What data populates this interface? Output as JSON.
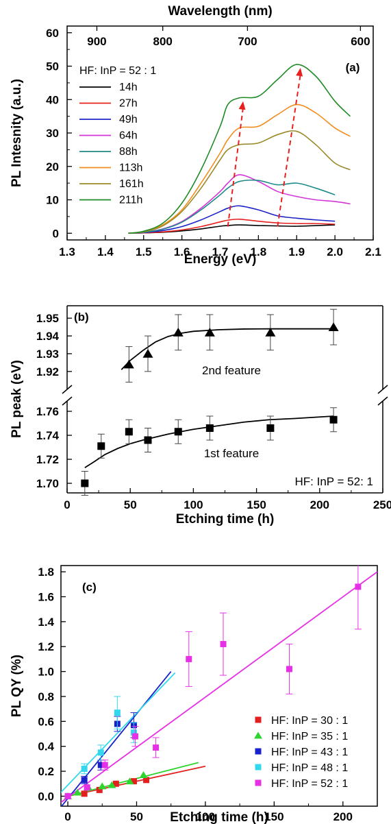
{
  "chart_data": [
    {
      "type": "line",
      "panel_label": "(a)",
      "top_xlabel": "Wavelength (nm)",
      "xlabel": "Energy (eV)",
      "ylabel": "PL Intesnity (a.u.)",
      "xlim": [
        1.3,
        2.1
      ],
      "ylim": [
        -2,
        62
      ],
      "xticks": [
        "1.3",
        "1.4",
        "1.5",
        "1.6",
        "1.7",
        "1.8",
        "1.9",
        "2.0",
        "2.1"
      ],
      "yticks": [
        "0",
        "10",
        "20",
        "30",
        "40",
        "50",
        "60"
      ],
      "top_ticks": [
        {
          "label": "900",
          "nm": 900
        },
        {
          "label": "800",
          "nm": 800
        },
        {
          "label": "700",
          "nm": 700
        },
        {
          "label": "600",
          "nm": 600
        }
      ],
      "legend_title": "HF: InP = 52 : 1",
      "x": [
        1.46,
        1.5,
        1.55,
        1.6,
        1.65,
        1.7,
        1.72,
        1.75,
        1.8,
        1.85,
        1.9,
        1.95,
        2.0,
        2.04
      ],
      "series": [
        {
          "name": "14h",
          "color": "#000000",
          "values": [
            0,
            0.1,
            0.3,
            0.7,
            1.3,
            2.1,
            2.3,
            2.5,
            2.3,
            2.2,
            2.1,
            2.3,
            2.5,
            null
          ]
        },
        {
          "name": "27h",
          "color": "#e8201d",
          "values": [
            0,
            0.1,
            0.4,
            1.0,
            2.0,
            3.4,
            3.9,
            4.2,
            3.6,
            3.1,
            2.9,
            2.9,
            2.7,
            null
          ]
        },
        {
          "name": "49h",
          "color": "#1c22c8",
          "values": [
            0,
            0.2,
            0.8,
            2.0,
            4.0,
            6.5,
            7.5,
            8.2,
            7.0,
            5.2,
            4.5,
            4.0,
            3.6,
            null
          ]
        },
        {
          "name": "64h",
          "color": "#d433d9",
          "values": [
            0,
            0.3,
            1.3,
            3.5,
            7.5,
            12.5,
            15.0,
            17.5,
            15.5,
            12.5,
            11.0,
            10.0,
            9.5,
            8.8
          ]
        },
        {
          "name": "88h",
          "color": "#1e8a8a",
          "values": [
            0,
            0.3,
            1.2,
            3.3,
            7.0,
            11.5,
            13.5,
            15.5,
            15.8,
            14.5,
            15.0,
            13.5,
            11.5,
            null
          ]
        },
        {
          "name": "113h",
          "color": "#f28c1e",
          "values": [
            0,
            0.5,
            2.5,
            7.0,
            15.0,
            24.0,
            28.0,
            31.5,
            32.0,
            35.5,
            38.5,
            36.0,
            31.5,
            29.0
          ]
        },
        {
          "name": "161h",
          "color": "#9a8a28",
          "values": [
            0,
            0.4,
            2.2,
            6.5,
            13.5,
            22.0,
            25.0,
            26.5,
            27.0,
            29.5,
            30.5,
            26.5,
            21.0,
            19.0
          ]
        },
        {
          "name": "211h",
          "color": "#1e8a24",
          "values": [
            0,
            0.6,
            3.0,
            9.0,
            19.0,
            32.0,
            38.5,
            40.5,
            41.0,
            46.0,
            50.5,
            47.0,
            39.5,
            35.0
          ]
        }
      ],
      "arrows": [
        {
          "from": [
            1.72,
            2.0
          ],
          "to": [
            1.76,
            39.5
          ]
        },
        {
          "from": [
            1.85,
            2.0
          ],
          "to": [
            1.91,
            49.5
          ]
        }
      ]
    },
    {
      "type": "scatter",
      "panel_label": "(b)",
      "xlabel": "Etching time (h)",
      "ylabel": "PL  peak (eV)",
      "xlim": [
        0,
        250
      ],
      "xticks": [
        "0",
        "50",
        "100",
        "150",
        "200",
        "250"
      ],
      "upper_yticks": [
        "1.92",
        "1.93",
        "1.94",
        "1.95"
      ],
      "lower_yticks": [
        "1.70",
        "1.72",
        "1.74",
        "1.76"
      ],
      "upper_ylim": [
        1.913,
        1.957
      ],
      "lower_ylim": [
        1.692,
        1.764
      ],
      "series": [
        {
          "name": "2nd feature",
          "marker": "triangle",
          "x": [
            49,
            64,
            88,
            113,
            161,
            211
          ],
          "y": [
            1.924,
            1.93,
            1.942,
            1.942,
            1.942,
            1.945
          ],
          "err": [
            0.01,
            0.01,
            0.01,
            0.01,
            0.01,
            0.01
          ],
          "fit_x": [
            43,
            50,
            60,
            70,
            80,
            90,
            100,
            120,
            140,
            160,
            180,
            211
          ],
          "fit_y": [
            1.921,
            1.9262,
            1.9318,
            1.9366,
            1.9397,
            1.9415,
            1.9426,
            1.9435,
            1.9439,
            1.944,
            1.944,
            1.944
          ]
        },
        {
          "name": "1st feature",
          "marker": "square",
          "x": [
            14,
            27,
            49,
            64,
            88,
            113,
            161,
            211
          ],
          "y": [
            1.7,
            1.731,
            1.743,
            1.736,
            1.743,
            1.746,
            1.746,
            1.753
          ],
          "err": [
            0.01,
            0.01,
            0.01,
            0.01,
            0.01,
            0.01,
            0.01,
            0.01
          ],
          "fit_x": [
            14,
            20,
            30,
            40,
            50,
            60,
            80,
            100,
            120,
            140,
            160,
            180,
            211
          ],
          "fit_y": [
            1.713,
            1.717,
            1.724,
            1.729,
            1.733,
            1.736,
            1.741,
            1.745,
            1.748,
            1.751,
            1.753,
            1.754,
            1.756
          ]
        }
      ],
      "annotations": [
        "2nd feature",
        "1st feature",
        "HF: InP = 52: 1"
      ]
    },
    {
      "type": "scatter",
      "panel_label": "(c)",
      "xlabel": "Etching time (h)",
      "ylabel": "PL QY (%)",
      "xlim": [
        -5,
        225
      ],
      "ylim": [
        -0.08,
        1.85
      ],
      "xticks": [
        0,
        50,
        100,
        150,
        200
      ],
      "yticks": [
        "0.0",
        "0.2",
        "0.4",
        "0.6",
        "0.8",
        "1.0",
        "1.2",
        "1.4",
        "1.6",
        "1.8"
      ],
      "series": [
        {
          "name": "HF: InP = 30 : 1",
          "marker": "square",
          "color": "#e32020",
          "x": [
            0,
            12,
            23,
            35,
            48,
            57
          ],
          "y": [
            0.0,
            0.02,
            0.05,
            0.1,
            0.12,
            0.13
          ],
          "err": [
            0,
            0,
            0,
            0,
            0,
            0
          ],
          "fit": [
            [
              0,
              0.0
            ],
            [
              100,
              0.24
            ]
          ]
        },
        {
          "name": "HF: InP = 35 : 1",
          "marker": "triangle",
          "color": "#2fd42f",
          "x": [
            0,
            7,
            15,
            25,
            32,
            45,
            55
          ],
          "y": [
            0.0,
            0.03,
            0.07,
            0.08,
            0.09,
            0.12,
            0.17
          ],
          "err": [
            0,
            0,
            0,
            0,
            0,
            0,
            0
          ],
          "fit": [
            [
              0,
              0.0
            ],
            [
              95,
              0.27
            ]
          ]
        },
        {
          "name": "HF: InP = 43 : 1",
          "marker": "square",
          "color": "#1a21c9",
          "x": [
            0,
            12,
            24,
            36,
            48
          ],
          "y": [
            0.0,
            0.13,
            0.25,
            0.58,
            0.57
          ],
          "err": [
            0,
            0.03,
            0.04,
            0.06,
            0.1
          ],
          "fit": [
            [
              -6,
              -0.1
            ],
            [
              75,
              1.0
            ]
          ]
        },
        {
          "name": "HF: InP = 48 : 1",
          "marker": "square",
          "color": "#34d8ee",
          "x": [
            0,
            12,
            24,
            36,
            48
          ],
          "y": [
            0.0,
            0.22,
            0.35,
            0.67,
            0.51
          ],
          "err": [
            0,
            0.04,
            0.06,
            0.13,
            0.08
          ],
          "fit": [
            [
              -6,
              0.02
            ],
            [
              78,
              0.99
            ]
          ]
        },
        {
          "name": "HF: InP = 52 : 1",
          "marker": "square",
          "color": "#e630e6",
          "x": [
            0,
            14,
            27,
            49,
            64,
            88,
            113,
            161,
            211
          ],
          "y": [
            0.0,
            0.07,
            0.25,
            0.48,
            0.39,
            1.1,
            1.22,
            1.02,
            1.68
          ],
          "err": [
            0,
            0.02,
            0.04,
            0.08,
            0.08,
            0.22,
            0.25,
            0.2,
            0.34
          ],
          "fit": [
            [
              -5,
              -0.05
            ],
            [
              225,
              1.8
            ]
          ]
        }
      ]
    }
  ]
}
